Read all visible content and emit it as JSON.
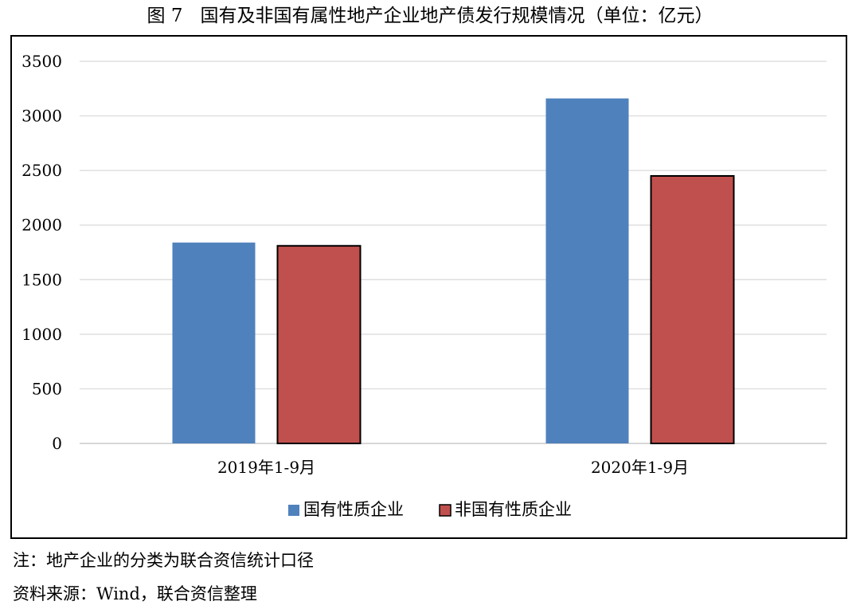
{
  "figure": {
    "number": "图 7",
    "title": "国有及非国有属性地产企业地产债发行规模情况（单位：亿元）"
  },
  "notes": {
    "note": "注：地产企业的分类为联合资信统计口径",
    "source": "资料来源：Wind，联合资信整理"
  },
  "chart_data": {
    "type": "bar",
    "title": "国有及非国有属性地产企业地产债发行规模情况（单位：亿元）",
    "categories": [
      "2019年1-9月",
      "2020年1-9月"
    ],
    "series": [
      {
        "name": "国有性质企业",
        "values": [
          1840,
          3160
        ],
        "color": "#4f81bd"
      },
      {
        "name": "非国有性质企业",
        "values": [
          1810,
          2450
        ],
        "color": "#c0504d"
      }
    ],
    "yticks": [
      "0",
      "500",
      "1000",
      "1500",
      "2000",
      "2500",
      "3000",
      "3500"
    ],
    "ylim": [
      0,
      3500
    ],
    "grid": true,
    "legend_position": "bottom"
  }
}
